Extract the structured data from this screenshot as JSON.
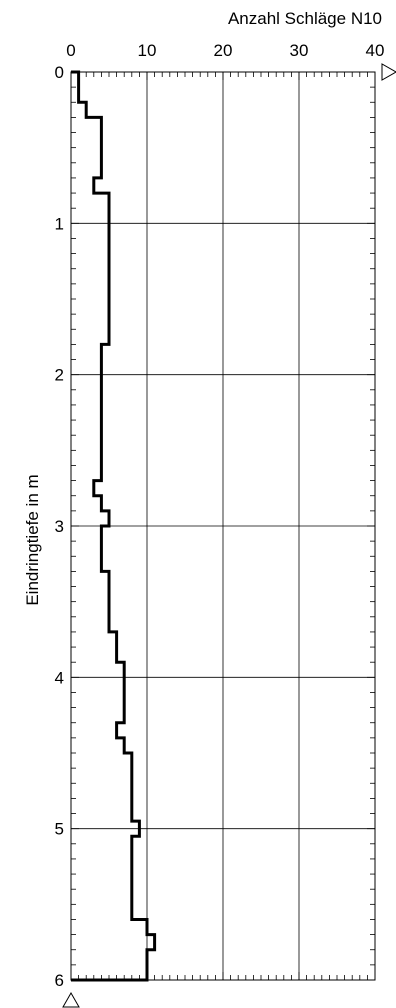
{
  "chart_data": {
    "type": "line",
    "title": "",
    "xlabel": "Anzahl Schläge N10",
    "ylabel": "Eindringtiefe in m",
    "xlim": [
      0,
      40
    ],
    "ylim": [
      0,
      6
    ],
    "y_inverted": true,
    "x_axis_position": "top",
    "grid": true,
    "x_ticks": [
      "0",
      "10",
      "20",
      "30",
      "40"
    ],
    "y_ticks": [
      "0",
      "1",
      "2",
      "3",
      "4",
      "5",
      "6"
    ],
    "series": [
      {
        "type": "step",
        "depth_intervals_m": [
          0.0,
          0.1,
          0.2,
          0.3,
          0.7,
          0.8,
          1.8,
          2.7,
          2.8,
          2.9,
          3.0,
          3.3,
          3.7,
          3.9,
          4.3,
          4.4,
          4.5,
          4.95,
          5.05,
          5.6,
          5.7,
          5.8,
          6.0
        ],
        "blows_n10": [
          1,
          1,
          2,
          4,
          3,
          5,
          4,
          3,
          4,
          5,
          4,
          5,
          6,
          7,
          6,
          7,
          8,
          9,
          8,
          10,
          11,
          10
        ]
      }
    ],
    "colors": {
      "line": "#000000",
      "grid": "#000000",
      "background": "#ffffff"
    }
  }
}
